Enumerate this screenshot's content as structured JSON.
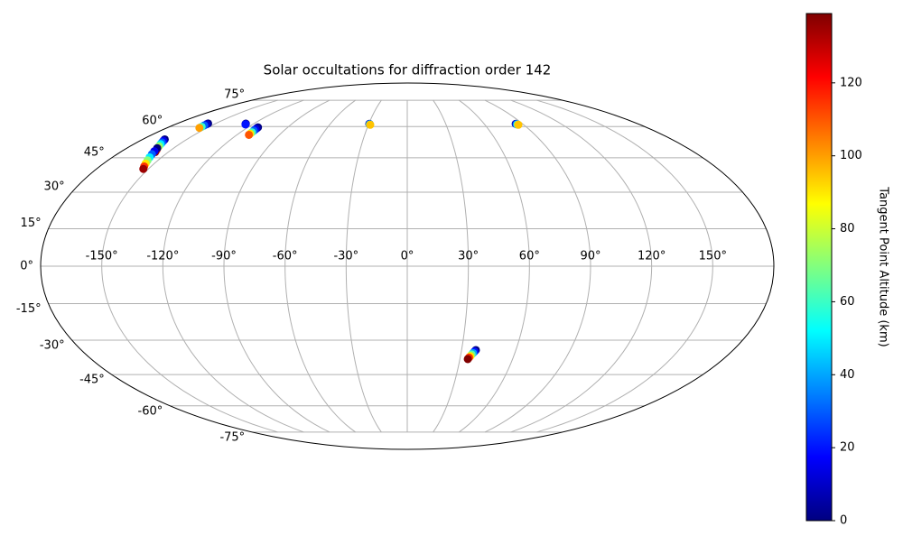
{
  "chart_data": {
    "type": "scatter",
    "projection": "mollweide",
    "title": "Solar occultations for diffraction order 142",
    "colorbar_label": "Tangent Point Altitude (km)",
    "colormap": "jet",
    "grid": true,
    "xlim": [
      -180,
      180
    ],
    "ylim": [
      -90,
      90
    ],
    "clim": [
      0,
      139
    ],
    "xticks": [
      {
        "value": -150,
        "label": "-150°"
      },
      {
        "value": -120,
        "label": "-120°"
      },
      {
        "value": -90,
        "label": "-90°"
      },
      {
        "value": -60,
        "label": "-60°"
      },
      {
        "value": -30,
        "label": "-30°"
      },
      {
        "value": 0,
        "label": "0°"
      },
      {
        "value": 30,
        "label": "30°"
      },
      {
        "value": 60,
        "label": "60°"
      },
      {
        "value": 90,
        "label": "90°"
      },
      {
        "value": 120,
        "label": "120°"
      },
      {
        "value": 150,
        "label": "150°"
      }
    ],
    "yticks": [
      {
        "value": -75,
        "label": "-75°"
      },
      {
        "value": -60,
        "label": "-60°"
      },
      {
        "value": -45,
        "label": "-45°"
      },
      {
        "value": -30,
        "label": "-30°"
      },
      {
        "value": -15,
        "label": "-15°"
      },
      {
        "value": 0,
        "label": "0°"
      },
      {
        "value": 15,
        "label": "15°"
      },
      {
        "value": 30,
        "label": "30°"
      },
      {
        "value": 45,
        "label": "45°"
      },
      {
        "value": 60,
        "label": "60°"
      },
      {
        "value": 75,
        "label": "75°"
      }
    ],
    "cticks": [
      0,
      20,
      40,
      60,
      80,
      100,
      120
    ],
    "lon": [
      -29.6,
      -29.4,
      -29.2,
      -29.0,
      -28.8,
      -28.6,
      84.6,
      84.8,
      85.0,
      85.2,
      85.5,
      85.8,
      -112.4,
      -112.3,
      -112.2,
      -112.0,
      -111.8,
      -111.7,
      -111.5,
      -126.2,
      -126.0,
      -125.8,
      -125.6,
      -125.4,
      -156.0,
      -155.9,
      -155.8,
      -155.7,
      -155.6,
      -165.0,
      -164.2,
      -163.3,
      -162.4,
      -161.4,
      -160.4,
      -159.3,
      -158.2,
      -160.5,
      -159.5,
      -158.4,
      -157.3,
      -156.2,
      -155.1,
      -154.0,
      -152.9,
      37.9,
      37.3,
      36.7,
      36.1,
      35.6,
      35.0,
      34.5
    ],
    "lat": [
      61.4,
      61.3,
      61.2,
      61.1,
      61.0,
      60.9,
      61.4,
      61.3,
      61.2,
      61.1,
      61.0,
      60.9,
      59.6,
      59.2,
      58.6,
      57.9,
      57.1,
      56.4,
      55.8,
      61.5,
      61.4,
      61.3,
      61.2,
      61.1,
      61.6,
      61.2,
      60.6,
      59.9,
      59.3,
      53.6,
      52.9,
      52.1,
      51.3,
      50.4,
      49.5,
      48.6,
      47.6,
      49.4,
      48.0,
      46.6,
      45.2,
      43.8,
      42.4,
      41.1,
      40.0,
      -34.2,
      -34.8,
      -35.5,
      -36.1,
      -36.8,
      -37.4,
      -38.1
    ],
    "altitude": [
      0,
      15,
      30,
      45,
      70,
      95,
      0,
      15,
      30,
      45,
      70,
      95,
      0,
      5,
      15,
      30,
      60,
      90,
      110,
      0,
      2,
      5,
      10,
      20,
      0,
      10,
      30,
      60,
      100,
      0,
      15,
      30,
      50,
      70,
      90,
      115,
      135,
      0,
      15,
      30,
      50,
      70,
      90,
      115,
      135,
      0,
      20,
      40,
      65,
      90,
      115,
      139
    ]
  }
}
